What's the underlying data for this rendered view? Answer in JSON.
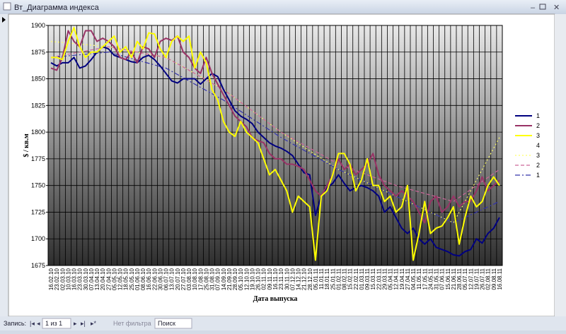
{
  "window": {
    "title": "Вт_Диаграмма индекса"
  },
  "nav": {
    "label": "Запись:",
    "position": "1 из 1",
    "filter": "Нет фильтра",
    "search": "Поиск"
  },
  "chart_data": {
    "type": "line",
    "ylabel": "$ / кв.м",
    "xlabel": "Дата выпуска",
    "categories": [
      "16.02.10",
      "23.02.10",
      "02.03.10",
      "10.03.10",
      "16.03.10",
      "23.03.10",
      "30.03.10",
      "07.04.10",
      "13.04.10",
      "20.04.10",
      "27.04.10",
      "05.05.10",
      "12.05.10",
      "18.05.10",
      "25.05.10",
      "01.06.10",
      "08.06.10",
      "16.06.10",
      "22.06.10",
      "30.06.10",
      "06.07.10",
      "13.07.10",
      "20.07.10",
      "27.07.10",
      "03.08.10",
      "10.08.10",
      "17.08.10",
      "25.08.10",
      "31.08.10",
      "07.09.10",
      "14.09.10",
      "21.09.10",
      "28.09.10",
      "05.10.10",
      "12.10.10",
      "19.10.10",
      "26.10.10",
      "02.11.10",
      "09.11.10",
      "16.11.10",
      "23.11.10",
      "30.11.10",
      "07.12.10",
      "14.12.10",
      "21.12.10",
      "28.12.10",
      "05.01.11",
      "11.01.11",
      "18.01.11",
      "25.01.11",
      "01.02.11",
      "08.02.11",
      "15.02.11",
      "22.02.11",
      "01.03.11",
      "09.03.11",
      "15.03.11",
      "22.03.11",
      "29.03.11",
      "05.04.11",
      "12.04.11",
      "19.04.11",
      "27.04.11",
      "04.05.11",
      "11.05.11",
      "17.05.11",
      "24.05.11",
      "31.05.11",
      "07.06.11",
      "15.06.11",
      "21.06.11",
      "28.06.11",
      "05.07.11",
      "12.07.11",
      "19.07.11",
      "26.07.11",
      "02.08.11",
      "09.08.11",
      "16.08.11"
    ],
    "series": [
      {
        "name": "1",
        "color": "#000080",
        "values": [
          1865,
          1862,
          1865,
          1865,
          1870,
          1860,
          1862,
          1868,
          1875,
          1880,
          1878,
          1872,
          1870,
          1868,
          1866,
          1865,
          1870,
          1872,
          1868,
          1862,
          1855,
          1848,
          1846,
          1850,
          1850,
          1850,
          1845,
          1850,
          1855,
          1852,
          1840,
          1830,
          1820,
          1815,
          1812,
          1808,
          1800,
          1795,
          1790,
          1787,
          1785,
          1782,
          1778,
          1770,
          1762,
          1760,
          1722,
          1740,
          1748,
          1752,
          1760,
          1752,
          1745,
          1748,
          1750,
          1748,
          1745,
          1740,
          1725,
          1730,
          1720,
          1710,
          1705,
          1710,
          1700,
          1695,
          1700,
          1692,
          1690,
          1688,
          1685,
          1684,
          1688,
          1690,
          1700,
          1696,
          1705,
          1710,
          1720
        ]
      },
      {
        "name": "2",
        "color": "#993366",
        "values": [
          1860,
          1858,
          1870,
          1895,
          1885,
          1880,
          1895,
          1895,
          1885,
          1888,
          1885,
          1880,
          1870,
          1868,
          1875,
          1865,
          1880,
          1878,
          1870,
          1885,
          1888,
          1886,
          1890,
          1875,
          1870,
          1860,
          1855,
          1870,
          1855,
          1845,
          1835,
          1825,
          1815,
          1810,
          1805,
          1795,
          1792,
          1790,
          1780,
          1775,
          1775,
          1770,
          1770,
          1768,
          1765,
          1755,
          1745,
          1740,
          1750,
          1760,
          1775,
          1765,
          1770,
          1760,
          1765,
          1770,
          1780,
          1760,
          1750,
          1745,
          1740,
          1745,
          1740,
          1735,
          1725,
          1715,
          1735,
          1740,
          1725,
          1730,
          1740,
          1730,
          1735,
          1735,
          1745,
          1758,
          1745,
          1750,
          1755
        ]
      },
      {
        "name": "3",
        "color": "#ffff00",
        "values": [
          1870,
          1870,
          1868,
          1885,
          1898,
          1880,
          1870,
          1875,
          1875,
          1880,
          1885,
          1890,
          1875,
          1880,
          1870,
          1885,
          1878,
          1893,
          1892,
          1878,
          1870,
          1885,
          1890,
          1885,
          1890,
          1860,
          1875,
          1865,
          1840,
          1830,
          1810,
          1800,
          1796,
          1810,
          1800,
          1795,
          1790,
          1775,
          1760,
          1765,
          1755,
          1745,
          1725,
          1740,
          1735,
          1730,
          1680,
          1740,
          1745,
          1760,
          1780,
          1780,
          1770,
          1745,
          1755,
          1775,
          1750,
          1750,
          1735,
          1740,
          1725,
          1730,
          1750,
          1680,
          1705,
          1735,
          1705,
          1710,
          1712,
          1720,
          1730,
          1695,
          1720,
          1740,
          1730,
          1735,
          1750,
          1758,
          1750
        ]
      }
    ],
    "series_without_data": [
      "4"
    ],
    "trendlines": [
      {
        "name": "3",
        "color": "#ffff66",
        "dash": "2,3",
        "x": [
          0,
          10,
          20,
          30,
          40,
          50,
          60,
          70,
          78
        ],
        "values": [
          1885,
          1880,
          1870,
          1840,
          1800,
          1765,
          1740,
          1715,
          1795
        ]
      },
      {
        "name": "2",
        "color": "#cc6699",
        "dash": "5,3",
        "x": [
          0,
          10,
          20,
          30,
          40,
          50,
          60,
          70,
          78
        ],
        "values": [
          1870,
          1880,
          1870,
          1840,
          1800,
          1770,
          1750,
          1735,
          1765
        ]
      },
      {
        "name": "1",
        "color": "#3333aa",
        "dash": "7,3,2,3",
        "x": [
          0,
          10,
          20,
          30,
          40,
          50,
          60,
          70,
          78
        ],
        "values": [
          1870,
          1875,
          1860,
          1830,
          1795,
          1765,
          1740,
          1715,
          1735
        ]
      }
    ],
    "ylim": [
      1675,
      1900
    ],
    "yticks": [
      1675,
      1700,
      1725,
      1750,
      1775,
      1800,
      1825,
      1850,
      1875,
      1900
    ],
    "grid": true
  }
}
